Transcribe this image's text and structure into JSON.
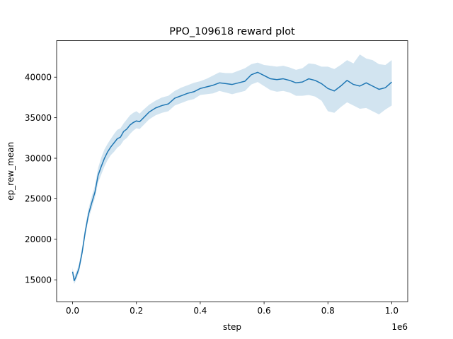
{
  "chart_data": {
    "type": "line",
    "title": "PPO_109618 reward plot",
    "xlabel": "step",
    "ylabel": "ep_rew_mean",
    "x_offset_label": "1e6",
    "xlim": [
      -50000,
      1050000
    ],
    "ylim": [
      12300,
      44500
    ],
    "x_ticks": [
      0,
      200000,
      400000,
      600000,
      800000,
      1000000
    ],
    "x_tick_labels": [
      "0.0",
      "0.2",
      "0.4",
      "0.6",
      "0.8",
      "1.0"
    ],
    "y_ticks": [
      15000,
      20000,
      25000,
      30000,
      35000,
      40000
    ],
    "y_tick_labels": [
      "15000",
      "20000",
      "25000",
      "30000",
      "35000",
      "40000"
    ],
    "grid": false,
    "colors": {
      "line": "#1f77b4",
      "band": "#1f77b4",
      "band_opacity": 0.2
    },
    "series": [
      {
        "x": [
          0,
          5000,
          10000,
          20000,
          30000,
          40000,
          50000,
          60000,
          70000,
          80000,
          90000,
          100000,
          110000,
          120000,
          130000,
          140000,
          150000,
          160000,
          170000,
          180000,
          190000,
          200000,
          210000,
          220000,
          240000,
          260000,
          280000,
          300000,
          320000,
          340000,
          360000,
          380000,
          400000,
          420000,
          440000,
          460000,
          480000,
          500000,
          520000,
          540000,
          560000,
          580000,
          600000,
          620000,
          640000,
          660000,
          680000,
          700000,
          720000,
          740000,
          760000,
          780000,
          800000,
          820000,
          840000,
          860000,
          880000,
          900000,
          920000,
          940000,
          960000,
          980000,
          1000000
        ],
        "y": [
          16000,
          14900,
          15300,
          16400,
          18400,
          21000,
          23100,
          24500,
          25800,
          27900,
          29000,
          30000,
          30800,
          31400,
          31900,
          32400,
          32600,
          33300,
          33600,
          34100,
          34400,
          34600,
          34500,
          34900,
          35700,
          36200,
          36500,
          36700,
          37400,
          37700,
          38000,
          38200,
          38600,
          38800,
          39000,
          39300,
          39200,
          39100,
          39300,
          39500,
          40300,
          40600,
          40200,
          39800,
          39700,
          39800,
          39600,
          39300,
          39400,
          39800,
          39600,
          39200,
          38600,
          38300,
          38900,
          39600,
          39100,
          38900,
          39300,
          38900,
          38500,
          38700,
          39400
        ],
        "lower": [
          15500,
          14500,
          14900,
          15900,
          17900,
          20500,
          22500,
          23800,
          25100,
          27000,
          28000,
          29000,
          29800,
          30400,
          30800,
          31300,
          31600,
          32200,
          32500,
          33000,
          33400,
          33700,
          33600,
          34000,
          34800,
          35300,
          35600,
          35800,
          36500,
          36800,
          37100,
          37300,
          37800,
          37900,
          38000,
          38300,
          38100,
          37900,
          38100,
          38300,
          39100,
          39400,
          38900,
          38400,
          38200,
          38300,
          38100,
          37700,
          37700,
          37800,
          37600,
          37100,
          35800,
          35600,
          36300,
          36900,
          36500,
          36100,
          36200,
          35800,
          35400,
          36000,
          36500
        ],
        "upper": [
          16500,
          15400,
          15800,
          16900,
          19000,
          21600,
          23800,
          25300,
          26600,
          28800,
          30100,
          31100,
          31800,
          32400,
          33000,
          33500,
          33700,
          34300,
          34800,
          35300,
          35600,
          35800,
          35500,
          35900,
          36600,
          37100,
          37500,
          37700,
          38300,
          38700,
          39000,
          39300,
          39500,
          39800,
          40200,
          40600,
          40500,
          40500,
          40800,
          41100,
          41600,
          41800,
          41500,
          41400,
          41300,
          41400,
          41200,
          40900,
          41100,
          41700,
          41600,
          41300,
          41300,
          41000,
          41500,
          42100,
          41700,
          42800,
          42300,
          42100,
          41600,
          41500,
          42100
        ]
      }
    ]
  }
}
